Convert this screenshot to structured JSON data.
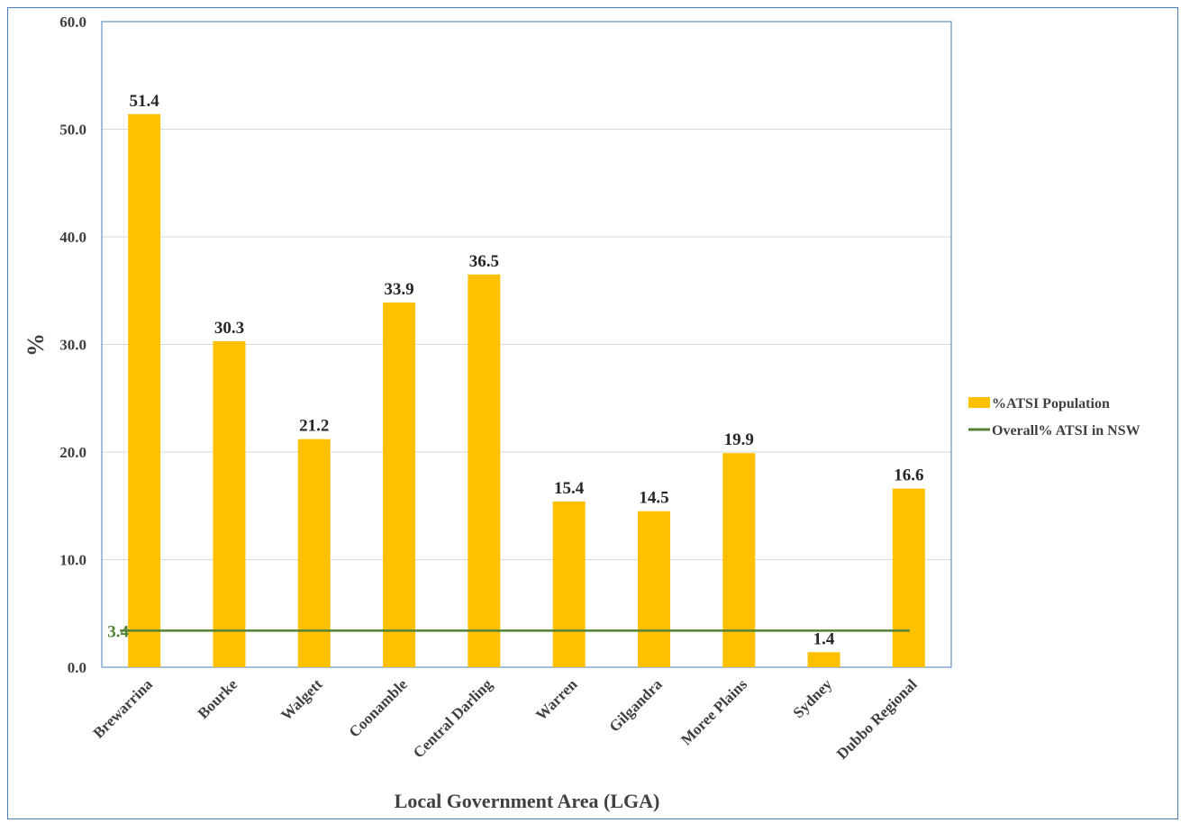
{
  "chart_data": {
    "type": "bar",
    "categories": [
      "Brewarrina",
      "Bourke",
      "Walgett",
      "Coonamble",
      "Central Darling",
      "Warren",
      "Gilgandra",
      "Moree Plains",
      "Sydney",
      "Dubbo Regional"
    ],
    "series": [
      {
        "name": "%ATSI Population",
        "type": "bar",
        "values": [
          51.4,
          30.3,
          21.2,
          33.9,
          36.5,
          15.4,
          14.5,
          19.9,
          1.4,
          16.6
        ],
        "color": "#FFC000"
      },
      {
        "name": "Overall% ATSI in NSW",
        "type": "line",
        "value": 3.4,
        "label": "3.4",
        "color": "#548235"
      }
    ],
    "data_labels": [
      "51.4",
      "30.3",
      "21.2",
      "33.9",
      "36.5",
      "15.4",
      "14.5",
      "19.9",
      "1.4",
      "16.6"
    ],
    "y_ticks": [
      "0.0",
      "10.0",
      "20.0",
      "30.0",
      "40.0",
      "50.0",
      "60.0"
    ],
    "xlabel": "Local Government Area (LGA)",
    "ylabel": "%",
    "ylim": [
      0,
      60
    ],
    "grid": true,
    "legend_position": "right"
  }
}
